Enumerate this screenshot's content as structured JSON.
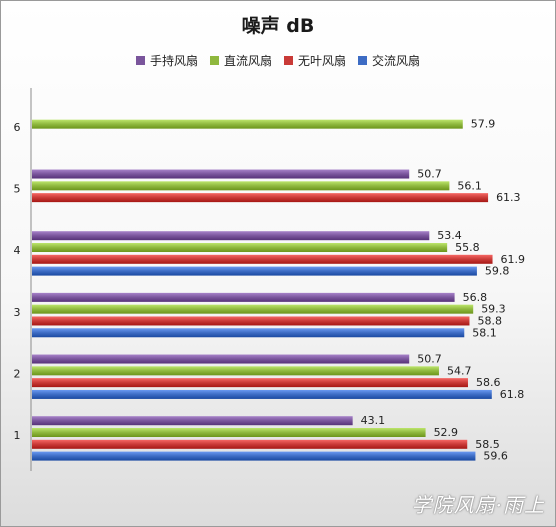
{
  "watermark": "学院风扇·雨上",
  "chart_data": {
    "type": "bar",
    "orientation": "horizontal",
    "title": "噪声 dB",
    "xlabel": "",
    "ylabel": "",
    "legend_position": "top",
    "categories": [
      "1",
      "2",
      "3",
      "4",
      "5",
      "6"
    ],
    "series": [
      {
        "name": "交流风扇",
        "color": "#3d6cc4",
        "values": [
          59.6,
          61.8,
          58.1,
          59.8,
          null,
          null
        ]
      },
      {
        "name": "无叶风扇",
        "color": "#c93a37",
        "values": [
          58.5,
          58.6,
          58.8,
          61.9,
          61.3,
          null
        ]
      },
      {
        "name": "直流风扇",
        "color": "#8fb83e",
        "values": [
          52.9,
          54.7,
          59.3,
          55.8,
          56.1,
          57.9
        ]
      },
      {
        "name": "手持风扇",
        "color": "#7a559c",
        "values": [
          43.1,
          50.7,
          56.8,
          53.4,
          50.7,
          null
        ]
      }
    ],
    "legend_order": [
      "手持风扇",
      "直流风扇",
      "无叶风扇",
      "交流风扇"
    ],
    "xlim": [
      0,
      70
    ],
    "grid": false
  }
}
